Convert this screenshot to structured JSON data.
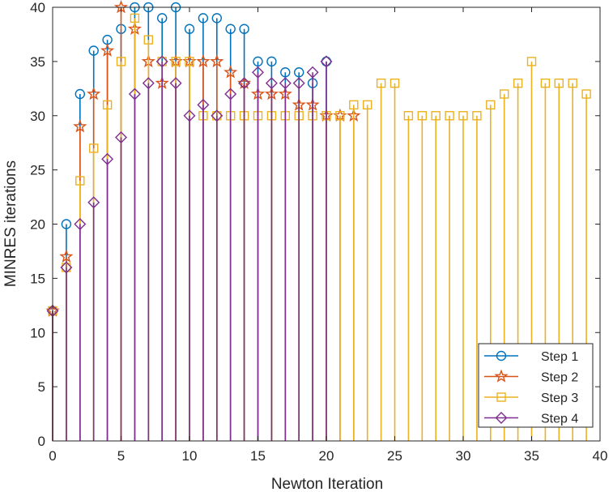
{
  "chart_data": {
    "type": "stem",
    "xlabel": "Newton Iteration",
    "ylabel": "MINRES iterations",
    "xlim": [
      0,
      40
    ],
    "ylim": [
      0,
      40
    ],
    "xticks": [
      0,
      5,
      10,
      15,
      20,
      25,
      30,
      35,
      40
    ],
    "yticks": [
      0,
      5,
      10,
      15,
      20,
      25,
      30,
      35,
      40
    ],
    "grid": false,
    "legend_position": "bottom-right",
    "series": [
      {
        "name": "Step 1",
        "color": "#0072BD",
        "marker": "circle",
        "x": [
          0,
          1,
          2,
          3,
          4,
          5,
          6,
          7,
          8,
          9,
          10,
          11,
          12,
          13,
          14,
          15,
          16,
          17,
          18,
          19,
          20
        ],
        "values": [
          12,
          20,
          32,
          36,
          37,
          38,
          40,
          40,
          39,
          40,
          38,
          39,
          39,
          38,
          38,
          35,
          35,
          34,
          34,
          33,
          35
        ]
      },
      {
        "name": "Step 2",
        "color": "#D95319",
        "marker": "star",
        "x": [
          0,
          1,
          2,
          3,
          4,
          5,
          6,
          7,
          8,
          9,
          10,
          11,
          12,
          13,
          14,
          15,
          16,
          17,
          18,
          19,
          20,
          21,
          22
        ],
        "values": [
          12,
          17,
          29,
          32,
          36,
          40,
          38,
          35,
          33,
          35,
          35,
          35,
          35,
          34,
          33,
          32,
          32,
          32,
          31,
          31,
          30,
          30,
          30
        ]
      },
      {
        "name": "Step 3",
        "color": "#EDB120",
        "marker": "square",
        "x": [
          0,
          1,
          2,
          3,
          4,
          5,
          6,
          7,
          8,
          9,
          10,
          11,
          12,
          13,
          14,
          15,
          16,
          17,
          18,
          19,
          20,
          21,
          22,
          23,
          24,
          25,
          26,
          27,
          28,
          29,
          30,
          31,
          32,
          33,
          34,
          35,
          36,
          37,
          38,
          39
        ],
        "values": [
          12,
          16,
          24,
          27,
          31,
          35,
          39,
          37,
          35,
          35,
          35,
          30,
          30,
          30,
          30,
          30,
          30,
          30,
          30,
          30,
          30,
          30,
          31,
          31,
          33,
          33,
          30,
          30,
          30,
          30,
          30,
          30,
          31,
          32,
          33,
          35,
          33,
          33,
          33,
          32
        ]
      },
      {
        "name": "Step 4",
        "color": "#7E2F8E",
        "marker": "diamond",
        "x": [
          0,
          1,
          2,
          3,
          4,
          5,
          6,
          7,
          8,
          9,
          10,
          11,
          12,
          13,
          14,
          15,
          16,
          17,
          18,
          19,
          20
        ],
        "values": [
          12,
          16,
          20,
          22,
          26,
          28,
          32,
          33,
          35,
          33,
          30,
          31,
          30,
          32,
          33,
          34,
          33,
          33,
          33,
          34,
          35
        ]
      }
    ]
  }
}
